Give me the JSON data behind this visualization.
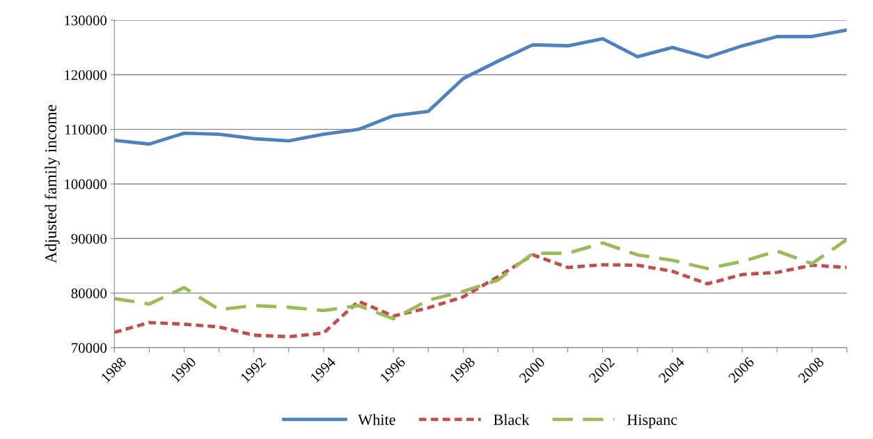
{
  "chart_data": {
    "type": "line",
    "ylabel": "Adjusted family income",
    "categories": [
      "1988",
      null,
      "1990",
      null,
      "1992",
      null,
      "1994",
      null,
      "1996",
      null,
      "1998",
      null,
      "2000",
      null,
      "2002",
      null,
      "2004",
      null,
      "2006",
      null,
      "2008",
      null
    ],
    "series": [
      {
        "name": "White",
        "color": "#4f81bd",
        "line_style": "solid",
        "values": [
          108000,
          107300,
          109300,
          109100,
          108300,
          107900,
          109100,
          110000,
          112500,
          113300,
          119300,
          122500,
          125500,
          125300,
          126600,
          123300,
          125000,
          123200,
          125300,
          127000,
          127000,
          128200
        ]
      },
      {
        "name": "Black",
        "color": "#c0504d",
        "line_style": "dotted",
        "values": [
          72800,
          74600,
          74300,
          73800,
          72300,
          72000,
          72700,
          78500,
          75800,
          77300,
          79300,
          83000,
          87000,
          84700,
          85200,
          85100,
          84000,
          81700,
          83400,
          83800,
          85100,
          84700
        ]
      },
      {
        "name": "Hispanc",
        "color": "#9bbb59",
        "line_style": "dashed",
        "values": [
          79000,
          78000,
          81000,
          77000,
          77700,
          77400,
          76800,
          77700,
          75300,
          78700,
          80300,
          82400,
          87300,
          87300,
          89200,
          87000,
          86000,
          84500,
          85800,
          87700,
          85400,
          89800
        ]
      }
    ],
    "ylim": [
      70000,
      130000
    ],
    "yticks": [
      70000,
      80000,
      90000,
      100000,
      110000,
      120000,
      130000
    ],
    "grid": "y",
    "legend": "bottom",
    "marker": "none"
  }
}
